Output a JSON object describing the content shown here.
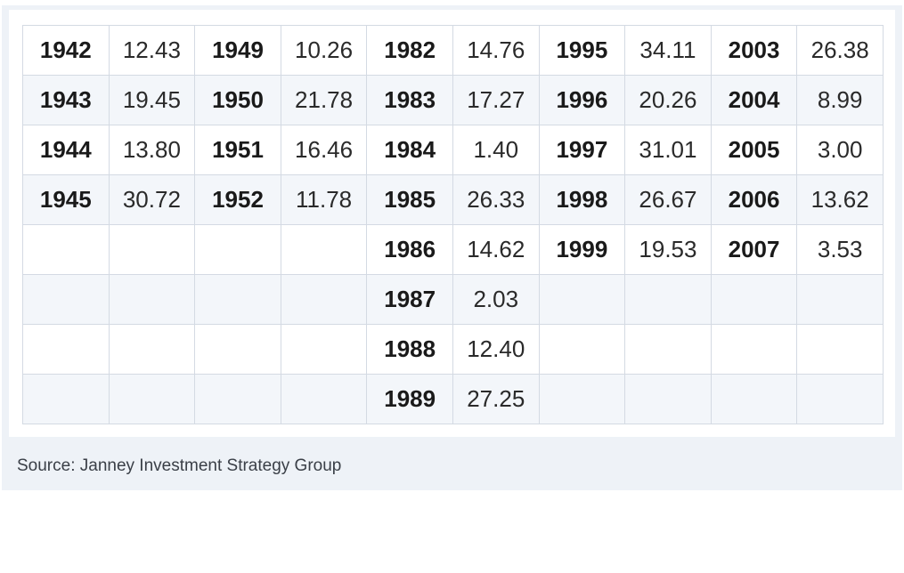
{
  "chart_data": {
    "type": "table",
    "groups": [
      {
        "rows": [
          {
            "year": "1942",
            "value": "12.43"
          },
          {
            "year": "1943",
            "value": "19.45"
          },
          {
            "year": "1944",
            "value": "13.80"
          },
          {
            "year": "1945",
            "value": "30.72"
          }
        ]
      },
      {
        "rows": [
          {
            "year": "1949",
            "value": "10.26"
          },
          {
            "year": "1950",
            "value": "21.78"
          },
          {
            "year": "1951",
            "value": "16.46"
          },
          {
            "year": "1952",
            "value": "11.78"
          }
        ]
      },
      {
        "rows": [
          {
            "year": "1982",
            "value": "14.76"
          },
          {
            "year": "1983",
            "value": "17.27"
          },
          {
            "year": "1984",
            "value": "1.40"
          },
          {
            "year": "1985",
            "value": "26.33"
          },
          {
            "year": "1986",
            "value": "14.62"
          },
          {
            "year": "1987",
            "value": "2.03"
          },
          {
            "year": "1988",
            "value": "12.40"
          },
          {
            "year": "1989",
            "value": "27.25"
          }
        ]
      },
      {
        "rows": [
          {
            "year": "1995",
            "value": "34.11"
          },
          {
            "year": "1996",
            "value": "20.26"
          },
          {
            "year": "1997",
            "value": "31.01"
          },
          {
            "year": "1998",
            "value": "26.67"
          },
          {
            "year": "1999",
            "value": "19.53"
          }
        ]
      },
      {
        "rows": [
          {
            "year": "2003",
            "value": "26.38"
          },
          {
            "year": "2004",
            "value": "8.99"
          },
          {
            "year": "2005",
            "value": "3.00"
          },
          {
            "year": "2006",
            "value": "13.62"
          },
          {
            "year": "2007",
            "value": "3.53"
          }
        ]
      }
    ],
    "source": "Source: Janney Investment Strategy Group"
  }
}
